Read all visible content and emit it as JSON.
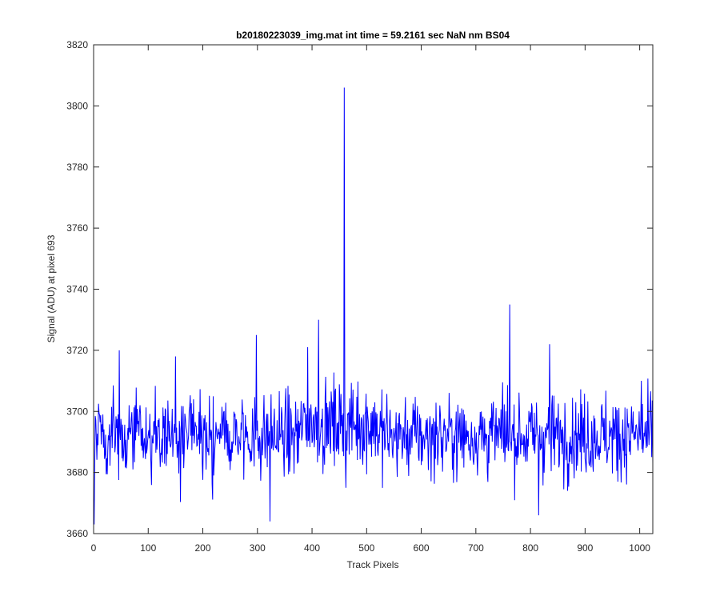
{
  "chart_data": {
    "type": "line",
    "title": "b20180223039_img.mat int time = 59.2161 sec  NaN nm BS04",
    "xlabel": "Track Pixels",
    "ylabel": "Signal (ADU) at pixel 693",
    "xlim": [
      0,
      1024
    ],
    "ylim": [
      3660,
      3820
    ],
    "xticks": [
      0,
      100,
      200,
      300,
      400,
      500,
      600,
      700,
      800,
      900,
      1000
    ],
    "yticks": [
      3660,
      3680,
      3700,
      3720,
      3740,
      3760,
      3780,
      3800,
      3820
    ],
    "series_color": "#0000ff",
    "grid": false,
    "series": [
      {
        "baseline": 3692,
        "noise_amplitude": 9,
        "x_start": 1,
        "x_end": 1024,
        "features": [
          {
            "x": 1,
            "y": 3663
          },
          {
            "x": 47,
            "y": 3720
          },
          {
            "x": 150,
            "y": 3718
          },
          {
            "x": 298,
            "y": 3725
          },
          {
            "x": 323,
            "y": 3664
          },
          {
            "x": 392,
            "y": 3721
          },
          {
            "x": 412,
            "y": 3730
          },
          {
            "x": 459,
            "y": 3806
          },
          {
            "x": 462,
            "y": 3675
          },
          {
            "x": 762,
            "y": 3735
          },
          {
            "x": 835,
            "y": 3722
          },
          {
            "x": 815,
            "y": 3666
          },
          {
            "x": 1003,
            "y": 3710
          }
        ]
      }
    ]
  }
}
